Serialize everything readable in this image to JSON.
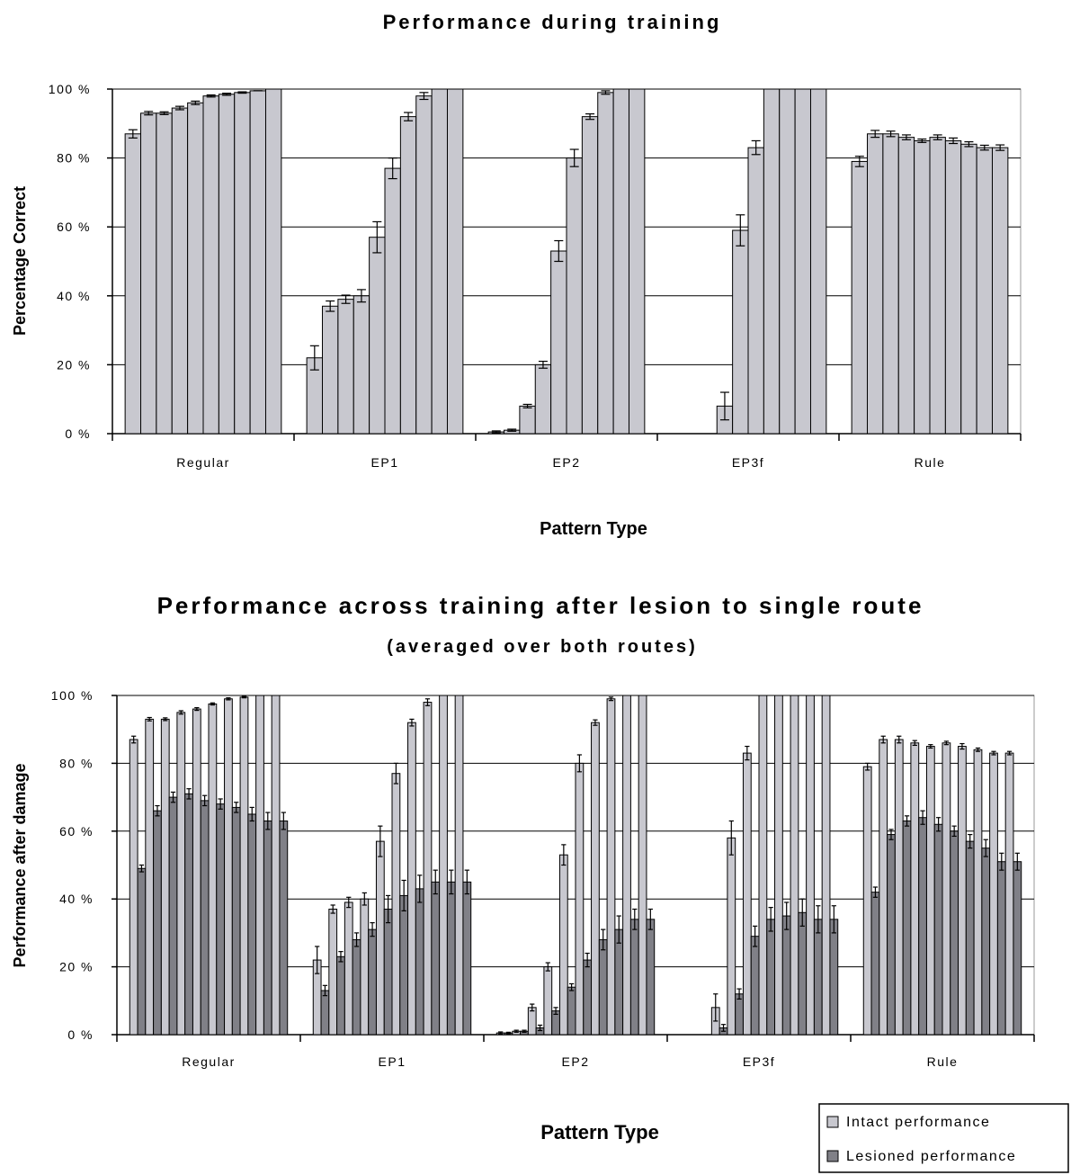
{
  "chart_data": [
    {
      "type": "bar",
      "title": "Performance during training",
      "xlabel": "Pattern Type",
      "ylabel": "Percentage Correct",
      "ylim": [
        0,
        100
      ],
      "yticks": [
        "0 %",
        "20 %",
        "40 %",
        "60 %",
        "80 %",
        "100 %"
      ],
      "grid": true,
      "categories": [
        "Regular",
        "EP1",
        "EP2",
        "EP3f",
        "Rule"
      ],
      "series": [
        {
          "values": [
            [
              87,
              93,
              93,
              94.5,
              96,
              98,
              98.5,
              99,
              99.5,
              100
            ],
            [
              22,
              37,
              39,
              40,
              57,
              77,
              92,
              98,
              100,
              100
            ],
            [
              0.5,
              1,
              8,
              20,
              53,
              80,
              92,
              99,
              100,
              100
            ],
            [
              0,
              0,
              0,
              8,
              59,
              83,
              100,
              100,
              100,
              100
            ],
            [
              79,
              87,
              87,
              86,
              85,
              86,
              85,
              84,
              83,
              83
            ]
          ],
          "errors": [
            [
              1.2,
              0.5,
              0.4,
              0.5,
              0.5,
              0.3,
              0.3,
              0.2,
              0,
              0
            ],
            [
              3.5,
              1.5,
              1.2,
              1.8,
              4.5,
              3,
              1.2,
              1,
              0,
              0
            ],
            [
              0.3,
              0.3,
              0.5,
              1,
              3,
              2.5,
              0.8,
              0.5,
              0,
              0
            ],
            [
              0,
              0,
              0,
              4,
              4.5,
              2,
              0,
              0,
              0,
              0
            ],
            [
              1.5,
              1,
              0.8,
              0.7,
              0.5,
              0.7,
              0.8,
              0.7,
              0.7,
              0.8
            ]
          ],
          "color": "#c8c8cf"
        }
      ]
    },
    {
      "type": "bar",
      "title": "Performance across training after lesion to single route",
      "subtitle": "(averaged over both routes)",
      "xlabel": "Pattern Type",
      "ylabel": "Performance after damage",
      "ylim": [
        0,
        100
      ],
      "yticks": [
        "0 %",
        "20 %",
        "40 %",
        "60 %",
        "80 %",
        "100 %"
      ],
      "grid": true,
      "legend_position": "bottom-right",
      "categories": [
        "Regular",
        "EP1",
        "EP2",
        "EP3f",
        "Rule"
      ],
      "series": [
        {
          "name": "Intact performance",
          "color": "#c8c8cf",
          "values": [
            [
              87,
              93,
              93,
              95,
              96,
              97.5,
              99,
              99.5,
              100,
              100
            ],
            [
              22,
              37,
              39,
              40,
              57,
              77,
              92,
              98,
              100,
              100
            ],
            [
              0.5,
              1,
              8,
              20,
              53,
              80,
              92,
              99,
              100,
              100
            ],
            [
              0,
              0,
              8,
              58,
              83,
              100,
              100,
              100,
              100,
              100
            ],
            [
              79,
              87,
              87,
              86,
              85,
              86,
              85,
              84,
              83,
              83
            ]
          ],
          "errors": [
            [
              1,
              0.5,
              0.4,
              0.5,
              0.4,
              0.3,
              0.3,
              0.2,
              0,
              0
            ],
            [
              4,
              1.2,
              1.5,
              1.8,
              4.5,
              3,
              1,
              1,
              0,
              0
            ],
            [
              0.3,
              0.3,
              1,
              1.2,
              3,
              2.5,
              0.8,
              0.5,
              0,
              0
            ],
            [
              0,
              0,
              4,
              5,
              2,
              0,
              0,
              0,
              0,
              0
            ],
            [
              1,
              1,
              1,
              0.7,
              0.5,
              0.5,
              0.8,
              0.5,
              0.5,
              0.5
            ]
          ]
        },
        {
          "name": "Lesioned performance",
          "color": "#808087",
          "values": [
            [
              49,
              66,
              70,
              71,
              69,
              68,
              67,
              65,
              63,
              63
            ],
            [
              13,
              23,
              28,
              31,
              37,
              41,
              43,
              45,
              45,
              45
            ],
            [
              0.5,
              1,
              2,
              7,
              14,
              22,
              28,
              31,
              34,
              34
            ],
            [
              0,
              0,
              2,
              12,
              29,
              34,
              35,
              36,
              34,
              34
            ],
            [
              42,
              59,
              63,
              64,
              62,
              60,
              57,
              55,
              51,
              51
            ]
          ],
          "errors": [
            [
              1,
              1.5,
              1.5,
              1.5,
              1.5,
              1.5,
              1.5,
              2,
              2.5,
              2.5
            ],
            [
              1.5,
              1.5,
              2,
              2,
              4,
              4.5,
              4,
              3.5,
              3.5,
              3.5
            ],
            [
              0.2,
              0.3,
              0.8,
              1,
              1,
              2,
              3,
              4,
              3,
              3
            ],
            [
              0,
              0,
              1,
              1.5,
              3,
              3.5,
              4,
              4,
              4,
              4
            ],
            [
              1.5,
              1.5,
              1.5,
              2,
              2,
              1.5,
              2,
              2.5,
              2.5,
              2.5
            ]
          ]
        }
      ]
    }
  ]
}
